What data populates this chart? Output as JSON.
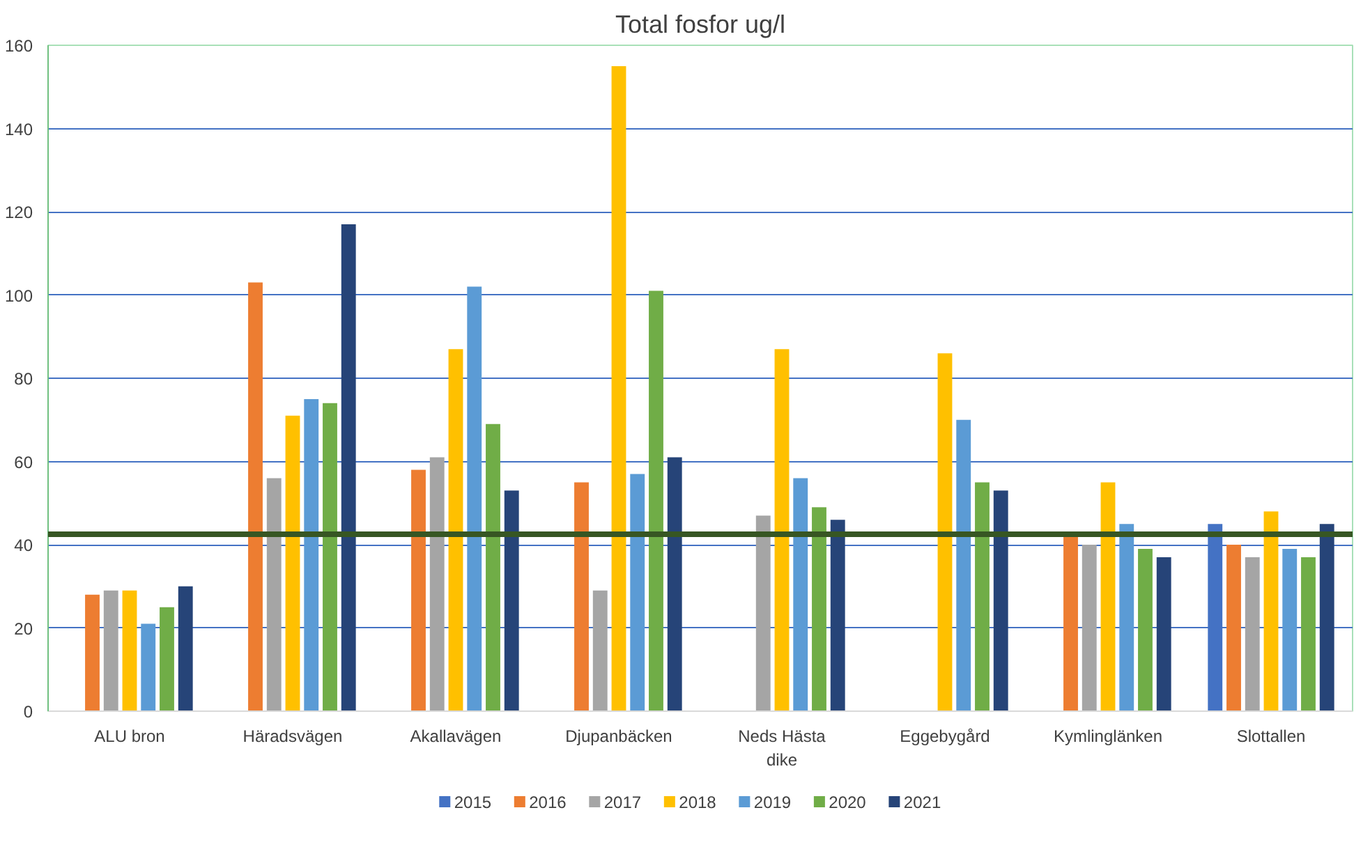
{
  "chart_data": {
    "type": "bar",
    "title": "Total fosfor ug/l",
    "categories": [
      "ALU bron",
      "Häradsvägen",
      "Akallavägen",
      "Djupanbäcken",
      "Neds Hästa dike",
      "Eggebygård",
      "Kymlinglänken",
      "Slottallen"
    ],
    "series": [
      {
        "name": "2015",
        "color": "#4472c4",
        "values": [
          null,
          null,
          null,
          null,
          null,
          null,
          null,
          45
        ]
      },
      {
        "name": "2016",
        "color": "#ed7d31",
        "values": [
          28,
          103,
          58,
          55,
          null,
          null,
          42,
          40
        ]
      },
      {
        "name": "2017",
        "color": "#a5a5a5",
        "values": [
          29,
          56,
          61,
          29,
          47,
          null,
          40,
          37
        ]
      },
      {
        "name": "2018",
        "color": "#ffc000",
        "values": [
          29,
          71,
          87,
          155,
          87,
          86,
          55,
          48
        ]
      },
      {
        "name": "2019",
        "color": "#5b9bd5",
        "values": [
          21,
          75,
          102,
          57,
          56,
          70,
          45,
          39
        ]
      },
      {
        "name": "2020",
        "color": "#70ad47",
        "values": [
          25,
          74,
          69,
          101,
          49,
          55,
          39,
          37
        ]
      },
      {
        "name": "2021",
        "color": "#264478",
        "values": [
          30,
          117,
          53,
          61,
          46,
          53,
          37,
          45
        ]
      }
    ],
    "ylim": [
      0,
      160
    ],
    "yticks": [
      0,
      20,
      40,
      60,
      80,
      100,
      120,
      140,
      160
    ],
    "grid": "y",
    "legend": "bottom",
    "ref_lines": [
      {
        "axis": "y",
        "value": 42.5,
        "color": "#375623"
      }
    ]
  }
}
